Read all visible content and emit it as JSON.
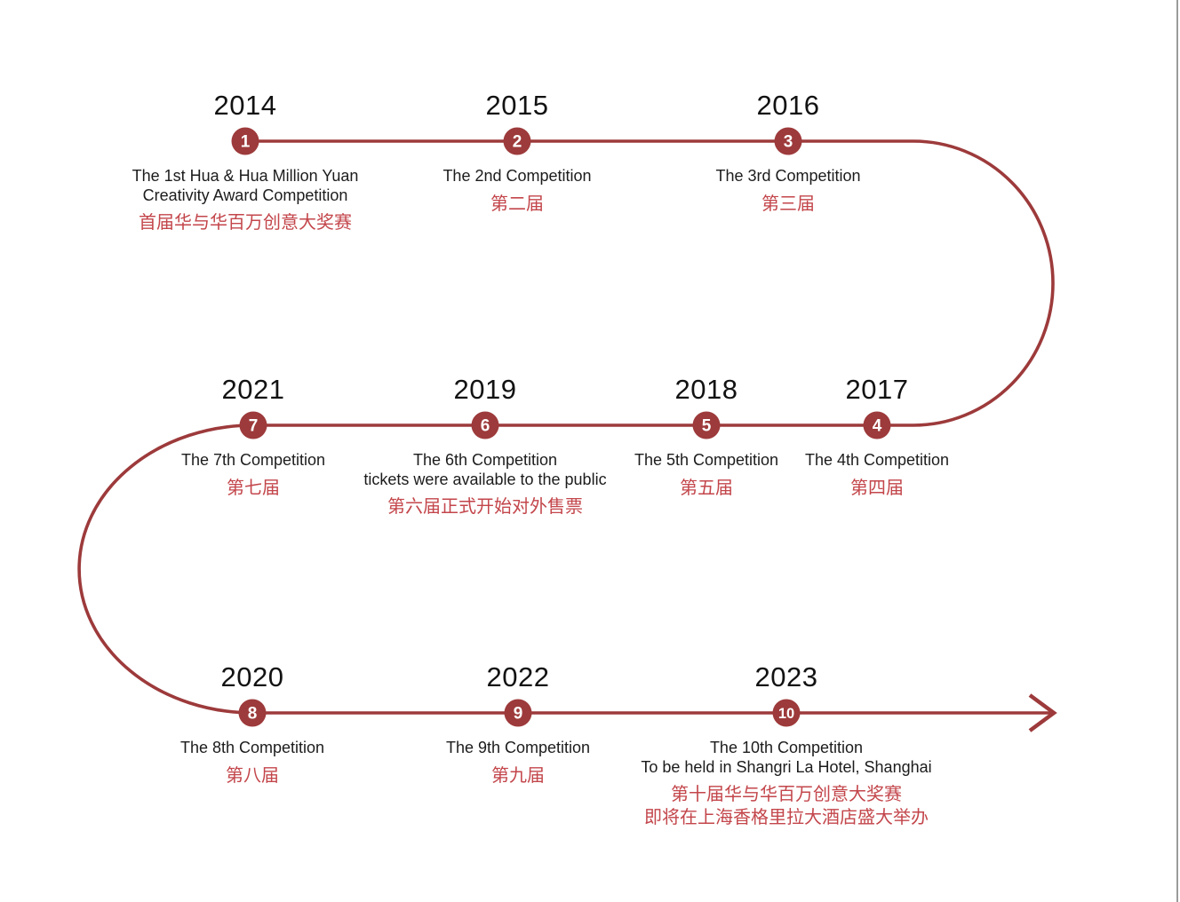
{
  "colors": {
    "line": "#9D3A3B",
    "accent_red": "#C3464B",
    "text": "#1C1C1C",
    "year_text": "#121212",
    "edge_divider": "#9B9B9B",
    "background": "#FFFFFF"
  },
  "icons": {
    "arrowhead": "→"
  },
  "timeline": {
    "nodes": [
      {
        "id": "1",
        "year": "2014",
        "marker": "1",
        "title_en": [
          "The 1st Hua & Hua Million Yuan",
          "Creativity Award Competition"
        ],
        "title_zh": [
          "首届华与华百万创意大奖赛"
        ]
      },
      {
        "id": "2",
        "year": "2015",
        "marker": "2",
        "title_en": [
          "The 2nd Competition"
        ],
        "title_zh": [
          "第二届"
        ]
      },
      {
        "id": "3",
        "year": "2016",
        "marker": "3",
        "title_en": [
          "The 3rd Competition"
        ],
        "title_zh": [
          "第三届"
        ]
      },
      {
        "id": "7",
        "year": "2021",
        "marker": "7",
        "title_en": [
          "The 7th Competition"
        ],
        "title_zh": [
          "第七届"
        ]
      },
      {
        "id": "6",
        "year": "2019",
        "marker": "6",
        "title_en": [
          "The 6th Competition",
          "tickets were available to the public"
        ],
        "title_zh": [
          "第六届正式开始对外售票"
        ]
      },
      {
        "id": "5",
        "year": "2018",
        "marker": "5",
        "title_en": [
          "The 5th Competition"
        ],
        "title_zh": [
          "第五届"
        ]
      },
      {
        "id": "4",
        "year": "2017",
        "marker": "4",
        "title_en": [
          "The 4th Competition"
        ],
        "title_zh": [
          "第四届"
        ]
      },
      {
        "id": "8",
        "year": "2020",
        "marker": "8",
        "title_en": [
          "The 8th Competition"
        ],
        "title_zh": [
          "第八届"
        ]
      },
      {
        "id": "9",
        "year": "2022",
        "marker": "9",
        "title_en": [
          "The 9th Competition"
        ],
        "title_zh": [
          "第九届"
        ]
      },
      {
        "id": "10",
        "year": "2023",
        "marker": "10",
        "title_en": [
          "The 10th Competition",
          "To be held in Shangri La Hotel, Shanghai"
        ],
        "title_zh": [
          "第十届华与华百万创意大奖赛",
          "即将在上海香格里拉大酒店盛大举办"
        ]
      }
    ]
  }
}
